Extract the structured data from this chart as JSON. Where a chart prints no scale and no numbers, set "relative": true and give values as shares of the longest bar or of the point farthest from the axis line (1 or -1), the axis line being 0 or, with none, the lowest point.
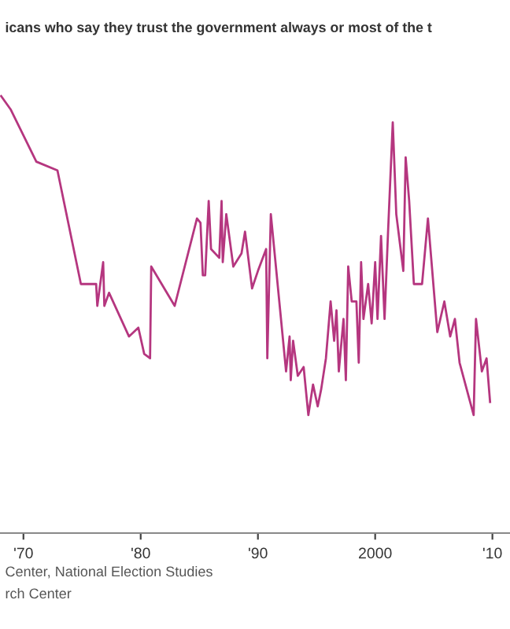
{
  "chart_data": {
    "type": "line",
    "relative": true,
    "title": "icans who say they trust the government always or most of the t",
    "annotations": [
      "Center, National Election Studies",
      "rch Center"
    ],
    "xlim": [
      1968,
      2011.5
    ],
    "xticks": [
      {
        "value": 1970,
        "label": "'70"
      },
      {
        "value": 1980,
        "label": "'80"
      },
      {
        "value": 1990,
        "label": "'90"
      },
      2000,
      {
        "value": 2010,
        "label": "'10"
      }
    ],
    "x": [
      1968.1,
      1968.9,
      1971.1,
      1972.9,
      1974.9,
      1976.2,
      1976.3,
      1976.8,
      1976.9,
      1977.3,
      1979.0,
      1979.8,
      1980.3,
      1980.8,
      1980.9,
      1982.9,
      1984.8,
      1985.1,
      1985.3,
      1985.5,
      1985.8,
      1986.0,
      1986.7,
      1986.9,
      1987.0,
      1987.3,
      1987.9,
      1988.6,
      1988.9,
      1989.5,
      1990.0,
      1990.7,
      1990.8,
      1991.1,
      1992.4,
      1992.7,
      1992.8,
      1993.0,
      1993.4,
      1993.9,
      1994.3,
      1994.7,
      1995.1,
      1995.4,
      1995.8,
      1996.2,
      1996.5,
      1996.7,
      1996.9,
      1997.3,
      1997.5,
      1997.7,
      1998.0,
      1998.4,
      1998.6,
      1998.8,
      1999.0,
      1999.4,
      1999.7,
      2000.0,
      2000.2,
      2000.5,
      2000.8,
      2001.1,
      2001.5,
      2001.8,
      2002.4,
      2002.6,
      2002.9,
      2003.3,
      2004.0,
      2004.5,
      2005.3,
      2005.9,
      2006.4,
      2006.8,
      2007.2,
      2008.4,
      2008.6,
      2009.1,
      2009.5,
      2009.8
    ],
    "series": [
      {
        "color": "#b5367f",
        "values": [
          1.0,
          0.97,
          0.85,
          0.83,
          0.57,
          0.57,
          0.52,
          0.62,
          0.52,
          0.55,
          0.45,
          0.47,
          0.41,
          0.4,
          0.61,
          0.52,
          0.72,
          0.71,
          0.59,
          0.59,
          0.76,
          0.65,
          0.63,
          0.76,
          0.62,
          0.73,
          0.61,
          0.64,
          0.69,
          0.56,
          0.6,
          0.65,
          0.4,
          0.73,
          0.37,
          0.45,
          0.35,
          0.44,
          0.36,
          0.38,
          0.27,
          0.34,
          0.29,
          0.33,
          0.4,
          0.53,
          0.44,
          0.51,
          0.37,
          0.49,
          0.35,
          0.61,
          0.53,
          0.53,
          0.39,
          0.62,
          0.49,
          0.57,
          0.48,
          0.62,
          0.49,
          0.68,
          0.49,
          0.69,
          0.94,
          0.73,
          0.6,
          0.86,
          0.76,
          0.57,
          0.57,
          0.72,
          0.46,
          0.53,
          0.45,
          0.49,
          0.39,
          0.27,
          0.49,
          0.37,
          0.4,
          0.3
        ]
      }
    ]
  }
}
